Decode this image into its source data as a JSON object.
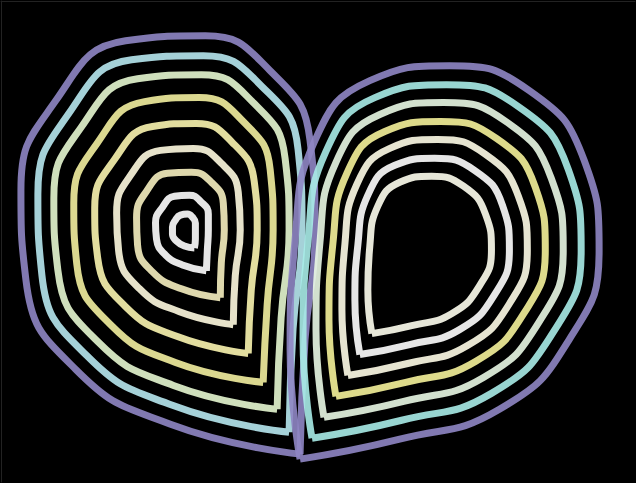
{
  "chart_data": {
    "type": "line",
    "xlim": [
      0,
      636
    ],
    "ylim": [
      0,
      483
    ],
    "grid": false,
    "tick_labels": false,
    "marker": "none",
    "line_style": "solid",
    "series": [
      {
        "color": "#8f86c4",
        "values": [
          [
            300,
            455
          ],
          [
            170,
            425
          ],
          [
            75,
            370
          ],
          [
            25,
            280
          ],
          [
            20,
            190
          ],
          [
            55,
            100
          ],
          [
            125,
            40
          ],
          [
            205,
            35
          ],
          [
            270,
            70
          ],
          [
            310,
            140
          ],
          [
            315,
            230
          ],
          [
            305,
            340
          ],
          [
            300,
            455
          ]
        ]
      },
      {
        "color": "#b7e8ef",
        "values": [
          [
            289,
            433
          ],
          [
            172,
            406
          ],
          [
            86,
            356
          ],
          [
            41,
            275
          ],
          [
            37,
            194
          ],
          [
            68,
            113
          ],
          [
            131,
            59
          ],
          [
            203,
            55
          ],
          [
            262,
            86
          ],
          [
            298,
            149
          ],
          [
            302,
            230
          ],
          [
            293,
            329
          ],
          [
            289,
            433
          ]
        ]
      },
      {
        "color": "#e6f7d0",
        "values": [
          [
            277,
            410
          ],
          [
            173,
            386
          ],
          [
            97,
            342
          ],
          [
            57,
            270
          ],
          [
            53,
            198
          ],
          [
            81,
            126
          ],
          [
            137,
            78
          ],
          [
            201,
            74
          ],
          [
            253,
            102
          ],
          [
            285,
            158
          ],
          [
            289,
            230
          ],
          [
            281,
            318
          ],
          [
            277,
            410
          ]
        ]
      },
      {
        "color": "#f3f0a0",
        "values": [
          [
            263,
            383
          ],
          [
            175,
            363
          ],
          [
            110,
            325
          ],
          [
            76,
            264
          ],
          [
            73,
            203
          ],
          [
            97,
            142
          ],
          [
            144,
            101
          ],
          [
            199,
            97
          ],
          [
            243,
            121
          ],
          [
            270,
            169
          ],
          [
            273,
            230
          ],
          [
            267,
            305
          ],
          [
            263,
            383
          ]
        ]
      },
      {
        "color": "#fbf5b0",
        "values": [
          [
            248,
            354
          ],
          [
            177,
            337
          ],
          [
            125,
            307
          ],
          [
            97,
            258
          ],
          [
            94,
            208
          ],
          [
            114,
            159
          ],
          [
            152,
            126
          ],
          [
            196,
            123
          ],
          [
            232,
            142
          ],
          [
            254,
            181
          ],
          [
            257,
            230
          ],
          [
            251,
            291
          ],
          [
            248,
            354
          ]
        ]
      },
      {
        "color": "#fffbe0",
        "values": [
          [
            233,
            325
          ],
          [
            179,
            312
          ],
          [
            139,
            289
          ],
          [
            118,
            251
          ],
          [
            116,
            213
          ],
          [
            130,
            175
          ],
          [
            160,
            150
          ],
          [
            193,
            148
          ],
          [
            221,
            163
          ],
          [
            238,
            192
          ],
          [
            240,
            230
          ],
          [
            235,
            276
          ],
          [
            233,
            325
          ]
        ]
      },
      {
        "color": "#f6f0c0",
        "values": [
          [
            220,
            298
          ],
          [
            181,
            289
          ],
          [
            152,
            272
          ],
          [
            137,
            245
          ],
          [
            136,
            218
          ],
          [
            146,
            191
          ],
          [
            167,
            173
          ],
          [
            191,
            172
          ],
          [
            211,
            182
          ],
          [
            223,
            203
          ],
          [
            224,
            230
          ],
          [
            221,
            263
          ],
          [
            220,
            298
          ]
        ]
      },
      {
        "color": "#ffffff",
        "values": [
          [
            206,
            271
          ],
          [
            182,
            265
          ],
          [
            165,
            255
          ],
          [
            156,
            239
          ],
          [
            155,
            223
          ],
          [
            162,
            207
          ],
          [
            174,
            196
          ],
          [
            189,
            195
          ],
          [
            200,
            201
          ],
          [
            208,
            214
          ],
          [
            208,
            230
          ],
          [
            207,
            250
          ],
          [
            206,
            271
          ]
        ]
      },
      {
        "color": "#ffffff",
        "values": [
          [
            194,
            248
          ],
          [
            184,
            246
          ],
          [
            176,
            241
          ],
          [
            172,
            234
          ],
          [
            172,
            227
          ],
          [
            175,
            220
          ],
          [
            180,
            215
          ],
          [
            187,
            214
          ],
          [
            192,
            217
          ],
          [
            195,
            223
          ],
          [
            195,
            230
          ],
          [
            195,
            239
          ],
          [
            194,
            248
          ]
        ]
      },
      {
        "color": "#8f86c4",
        "values": [
          [
            300,
            460
          ],
          [
            400,
            440
          ],
          [
            500,
            410
          ],
          [
            570,
            340
          ],
          [
            600,
            250
          ],
          [
            585,
            160
          ],
          [
            530,
            90
          ],
          [
            450,
            65
          ],
          [
            370,
            80
          ],
          [
            315,
            140
          ],
          [
            295,
            240
          ],
          [
            290,
            350
          ],
          [
            300,
            460
          ]
        ]
      },
      {
        "color": "#a9ece8",
        "values": [
          [
            312,
            439
          ],
          [
            402,
            421
          ],
          [
            492,
            394
          ],
          [
            555,
            331
          ],
          [
            582,
            250
          ],
          [
            569,
            169
          ],
          [
            519,
            106
          ],
          [
            447,
            84
          ],
          [
            375,
            97
          ],
          [
            326,
            151
          ],
          [
            308,
            241
          ],
          [
            303,
            340
          ],
          [
            312,
            439
          ]
        ]
      },
      {
        "color": "#e9f8e4",
        "values": [
          [
            324,
            418
          ],
          [
            404,
            402
          ],
          [
            484,
            378
          ],
          [
            540,
            322
          ],
          [
            564,
            250
          ],
          [
            552,
            178
          ],
          [
            508,
            122
          ],
          [
            444,
            102
          ],
          [
            380,
            114
          ],
          [
            336,
            162
          ],
          [
            320,
            242
          ],
          [
            316,
            330
          ],
          [
            324,
            418
          ]
        ]
      },
      {
        "color": "#f5f29a",
        "values": [
          [
            336,
            397
          ],
          [
            406,
            383
          ],
          [
            476,
            362
          ],
          [
            525,
            313
          ],
          [
            546,
            250
          ],
          [
            536,
            187
          ],
          [
            497,
            138
          ],
          [
            441,
            121
          ],
          [
            385,
            131
          ],
          [
            347,
            173
          ],
          [
            333,
            243
          ],
          [
            329,
            320
          ],
          [
            336,
            397
          ]
        ]
      },
      {
        "color": "#fffde8",
        "values": [
          [
            348,
            376
          ],
          [
            408,
            364
          ],
          [
            468,
            346
          ],
          [
            510,
            304
          ],
          [
            528,
            250
          ],
          [
            519,
            196
          ],
          [
            486,
            154
          ],
          [
            438,
            139
          ],
          [
            390,
            148
          ],
          [
            357,
            184
          ],
          [
            345,
            244
          ],
          [
            342,
            310
          ],
          [
            348,
            376
          ]
        ]
      },
      {
        "color": "#ffffff",
        "values": [
          [
            360,
            355
          ],
          [
            410,
            345
          ],
          [
            460,
            330
          ],
          [
            495,
            295
          ],
          [
            510,
            250
          ],
          [
            503,
            205
          ],
          [
            475,
            170
          ],
          [
            435,
            158
          ],
          [
            395,
            165
          ],
          [
            368,
            195
          ],
          [
            358,
            245
          ],
          [
            355,
            300
          ],
          [
            360,
            355
          ]
        ]
      },
      {
        "color": "#fffff0",
        "values": [
          [
            372,
            334
          ],
          [
            412,
            326
          ],
          [
            452,
            314
          ],
          [
            480,
            286
          ],
          [
            492,
            250
          ],
          [
            486,
            214
          ],
          [
            464,
            186
          ],
          [
            432,
            176
          ],
          [
            400,
            182
          ],
          [
            378,
            206
          ],
          [
            370,
            246
          ],
          [
            368,
            290
          ],
          [
            372,
            334
          ]
        ]
      }
    ]
  }
}
